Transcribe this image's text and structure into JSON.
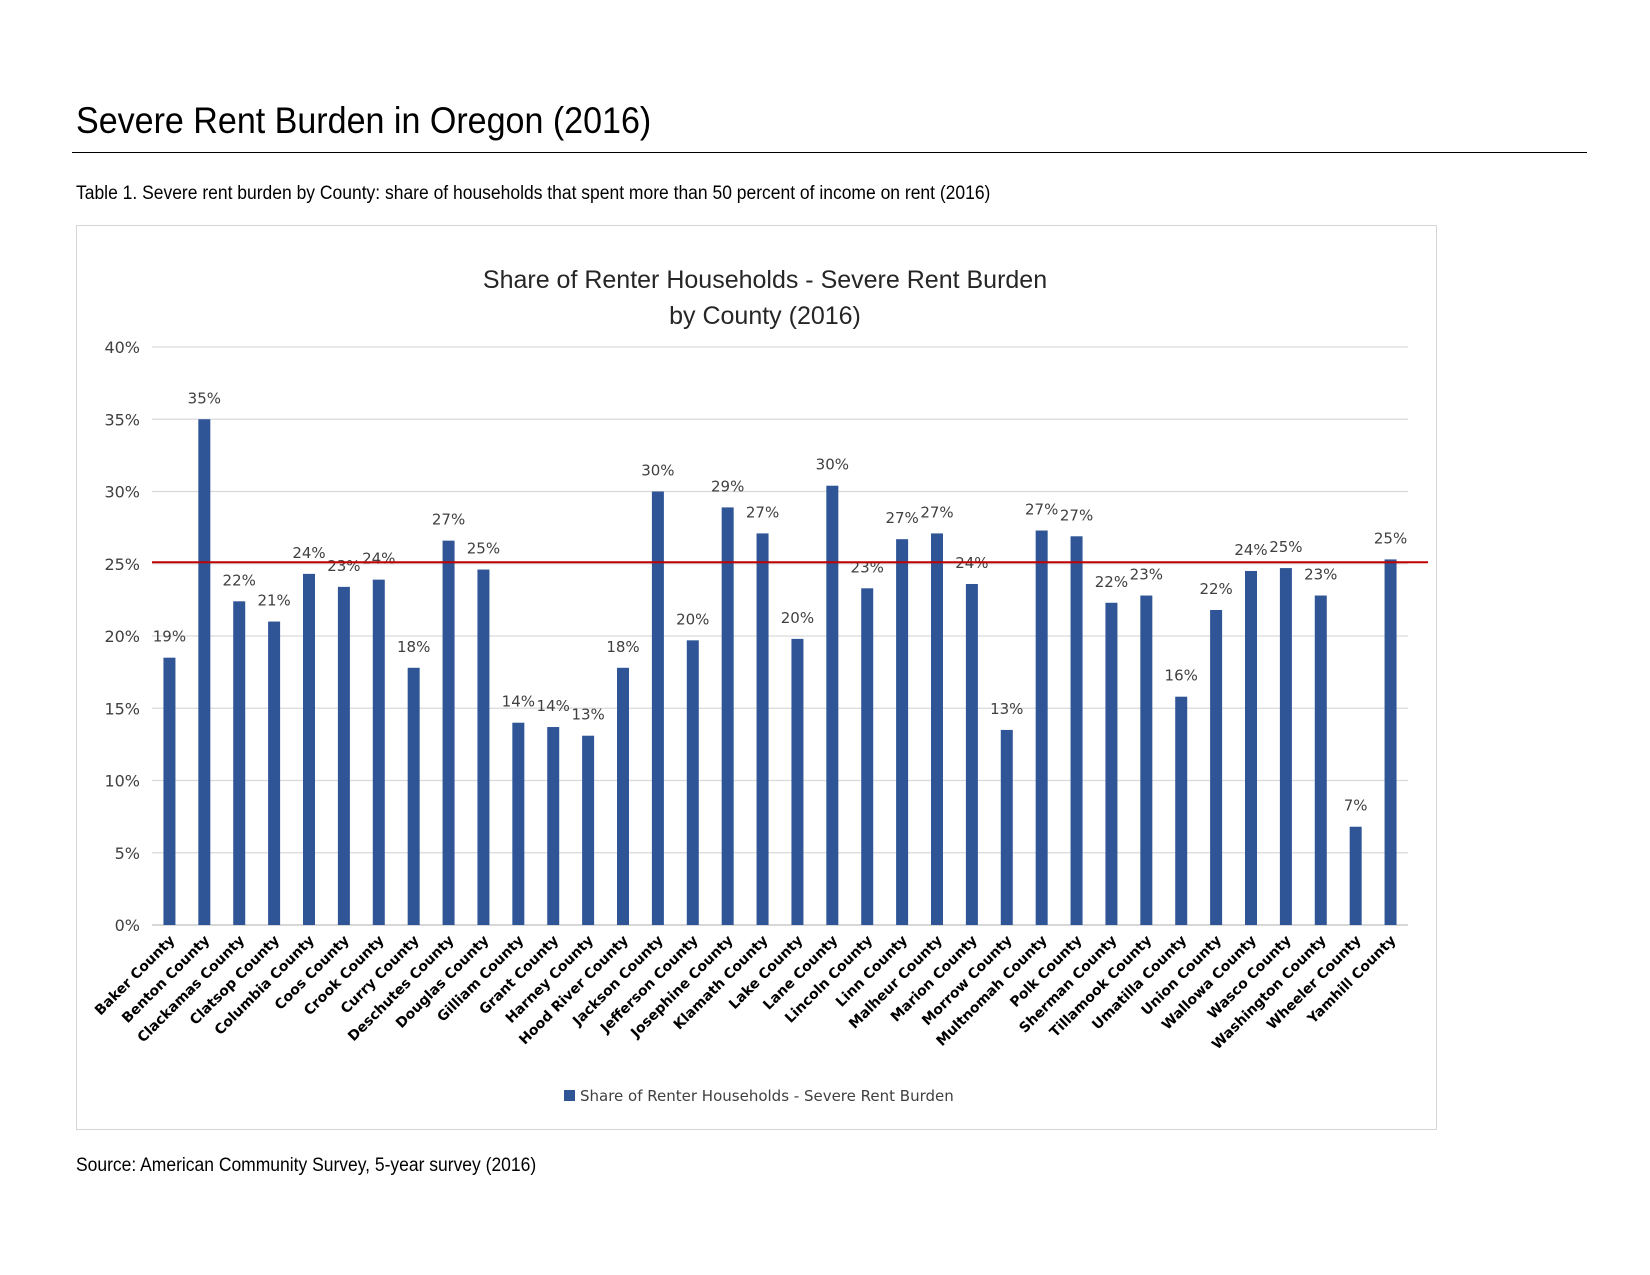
{
  "header": {
    "title": "Severe Rent Burden in Oregon (2016)",
    "caption": "Table 1. Severe rent burden by County: share of households that spent more than 50 percent of income on rent (2016)"
  },
  "footer": {
    "source": "Source: American Community Survey, 5-year survey (2016)"
  },
  "chart_data": {
    "type": "bar",
    "title_lines": [
      "Share of Renter Households - Severe Rent Burden",
      "by County (2016)"
    ],
    "xlabel": "",
    "ylabel": "",
    "ylim": [
      0,
      0.4
    ],
    "yticks": [
      0,
      0.05,
      0.1,
      0.15,
      0.2,
      0.25,
      0.3,
      0.35,
      0.4
    ],
    "ytick_labels": [
      "0%",
      "5%",
      "10%",
      "15%",
      "20%",
      "25%",
      "30%",
      "35%",
      "40%"
    ],
    "grid": true,
    "legend_position": "bottom",
    "bar_color": "#2F5597",
    "reference_line": {
      "value": 0.251,
      "color": "#C00000"
    },
    "categories": [
      "Baker County",
      "Benton County",
      "Clackamas County",
      "Clatsop County",
      "Columbia County",
      "Coos County",
      "Crook County",
      "Curry County",
      "Deschutes County",
      "Douglas County",
      "Gilliam County",
      "Grant County",
      "Harney County",
      "Hood River County",
      "Jackson County",
      "Jefferson County",
      "Josephine County",
      "Klamath County",
      "Lake County",
      "Lane County",
      "Lincoln County",
      "Linn County",
      "Malheur County",
      "Marion County",
      "Morrow County",
      "Multnomah County",
      "Polk County",
      "Sherman County",
      "Tillamook County",
      "Umatilla County",
      "Union County",
      "Wallowa County",
      "Wasco County",
      "Washington County",
      "Wheeler County",
      "Yamhill County"
    ],
    "series": [
      {
        "name": "Share of Renter Households - Severe Rent Burden",
        "values": [
          0.185,
          0.35,
          0.224,
          0.21,
          0.243,
          0.234,
          0.239,
          0.178,
          0.266,
          0.246,
          0.14,
          0.137,
          0.131,
          0.178,
          0.3,
          0.197,
          0.289,
          0.271,
          0.198,
          0.304,
          0.233,
          0.267,
          0.271,
          0.236,
          0.135,
          0.273,
          0.269,
          0.223,
          0.228,
          0.158,
          0.218,
          0.245,
          0.247,
          0.228,
          0.068,
          0.253
        ],
        "labels": [
          "19%",
          "35%",
          "22%",
          "21%",
          "24%",
          "23%",
          "24%",
          "18%",
          "27%",
          "25%",
          "14%",
          "14%",
          "13%",
          "18%",
          "30%",
          "20%",
          "29%",
          "27%",
          "20%",
          "30%",
          "23%",
          "27%",
          "27%",
          "24%",
          "13%",
          "27%",
          "27%",
          "22%",
          "23%",
          "16%",
          "22%",
          "24%",
          "25%",
          "23%",
          "7%",
          "25%"
        ]
      }
    ]
  }
}
